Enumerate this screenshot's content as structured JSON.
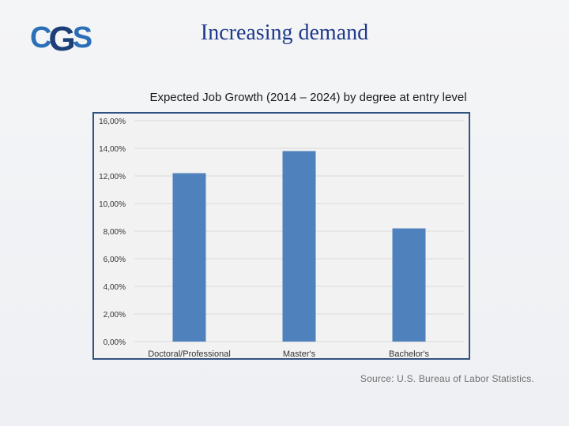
{
  "slide": {
    "title": "Increasing demand",
    "logo_text": "CGS",
    "source": "Source: U.S. Bureau of Labor Statistics."
  },
  "colors": {
    "bar": "#4f81bd",
    "title": "#1f3a8a",
    "logo_light": "#2a6fb8",
    "logo_dark": "#1d3f78",
    "frame": "#34527f"
  },
  "chart_data": {
    "type": "bar",
    "title": "Expected Job Growth (2014 – 2024) by degree at entry level",
    "categories": [
      "Doctoral/Professional",
      "Master's",
      "Bachelor's"
    ],
    "values": [
      12.2,
      13.8,
      8.2
    ],
    "ylim": [
      0,
      16
    ],
    "yticks": [
      0,
      2,
      4,
      6,
      8,
      10,
      12,
      14,
      16
    ],
    "ytick_labels": [
      "0,00%",
      "2,00%",
      "4,00%",
      "6,00%",
      "8,00%",
      "10,00%",
      "12,00%",
      "14,00%",
      "16,00%"
    ],
    "xlabel": "",
    "ylabel": "",
    "grid": true,
    "legend": "none"
  }
}
